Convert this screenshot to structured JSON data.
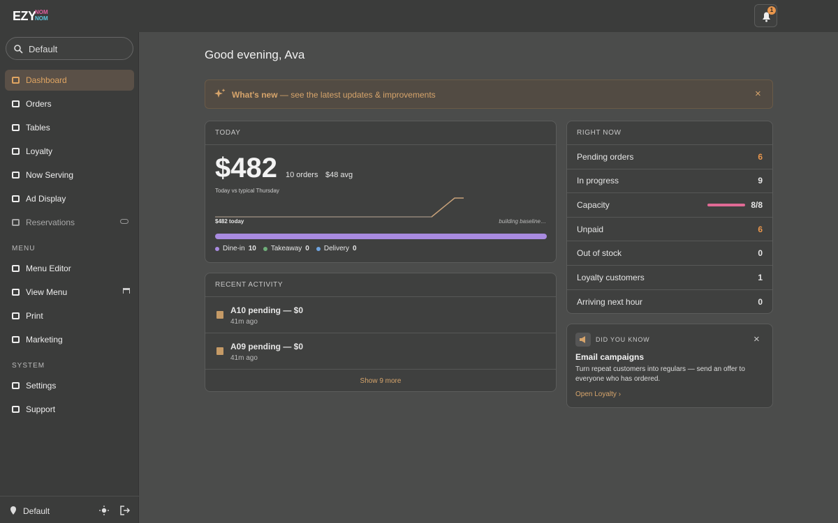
{
  "brand": {
    "name": "EZY",
    "accent": [
      "NOM",
      "NOM"
    ]
  },
  "notifications": 1,
  "search": "Default",
  "nav": [
    {
      "items": [
        {
          "label": "Dashboard",
          "active": true
        },
        {
          "label": "Orders"
        },
        {
          "label": "Tables"
        },
        {
          "label": "Loyalty"
        },
        {
          "label": "Now Serving"
        },
        {
          "label": "Ad Display"
        },
        {
          "label": "Reservations",
          "disabled": true
        }
      ]
    },
    {
      "heading": "MENU",
      "items": [
        {
          "label": "Menu Editor"
        },
        {
          "label": "View Menu"
        },
        {
          "label": "Print"
        },
        {
          "label": "Marketing"
        }
      ]
    },
    {
      "heading": "SYSTEM",
      "items": [
        {
          "label": "Settings"
        },
        {
          "label": "Support"
        }
      ]
    }
  ],
  "footer": {
    "location": "Default"
  },
  "greeting": "Good evening, Ava",
  "banner": {
    "title": "What's new",
    "text": "— see the latest updates & improvements"
  },
  "today": {
    "heading": "TODAY",
    "revenue": "$482",
    "orders": "10 orders",
    "avg": "$48 avg",
    "compare": "Today vs typical Thursday",
    "today_label": "$482 today",
    "baseline": "building baseline…",
    "channels": [
      {
        "name": "Dine-in",
        "value": 10,
        "color": "#a98be0"
      },
      {
        "name": "Takeaway",
        "value": 0,
        "color": "#6fae7a"
      },
      {
        "name": "Delivery",
        "value": 0,
        "color": "#6fa4e0"
      }
    ]
  },
  "recent_activity": {
    "heading": "RECENT ACTIVITY",
    "items": [
      {
        "title": "A10 pending — $0",
        "time": "41m ago"
      },
      {
        "title": "A09 pending — $0",
        "time": "41m ago"
      }
    ],
    "more": "Show 9 more"
  },
  "right_now": {
    "heading": "RIGHT NOW",
    "rows": [
      {
        "label": "Pending orders",
        "value": 6,
        "highlight": true
      },
      {
        "label": "In progress",
        "value": 9
      },
      {
        "label": "Capacity",
        "value": "8/8",
        "bar": true
      },
      {
        "label": "Unpaid",
        "value": 6,
        "highlight": true
      },
      {
        "label": "Out of stock",
        "value": 0
      },
      {
        "label": "Loyalty customers",
        "value": 1
      },
      {
        "label": "Arriving next hour",
        "value": 0
      }
    ]
  },
  "tip": {
    "heading": "DID YOU KNOW",
    "title": "Email campaigns",
    "text": "Turn repeat customers into regulars — send an offer to everyone who has ordered.",
    "link": "Open Loyalty"
  }
}
